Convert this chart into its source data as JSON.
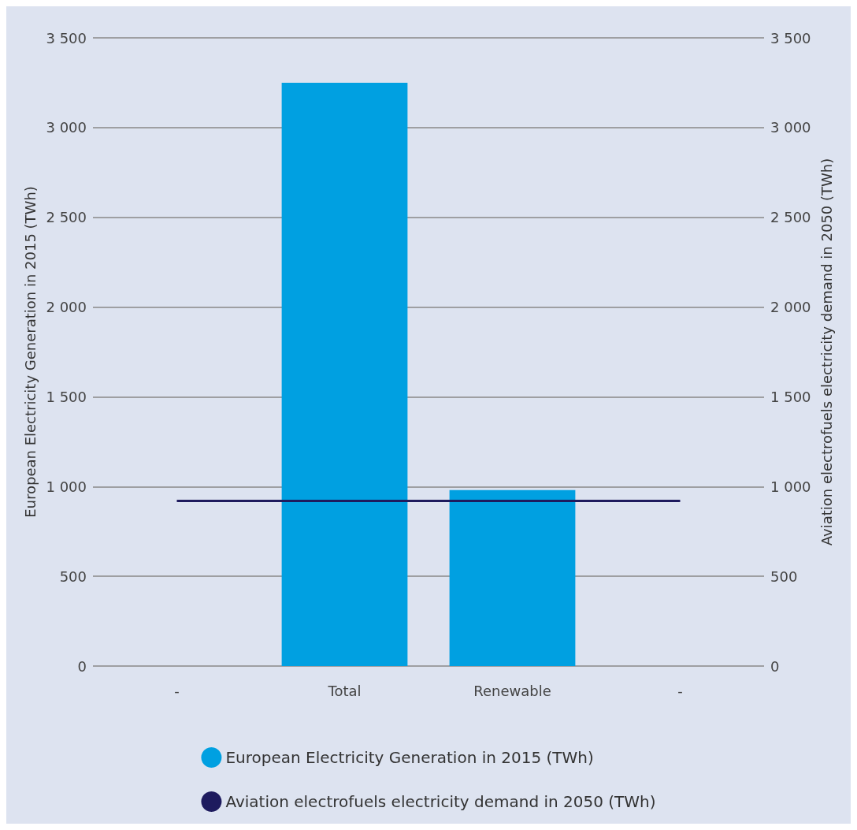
{
  "chart_data": {
    "type": "bar",
    "ylabel": "European Electricity Generation in 2015 (TWh)",
    "y2label": "Aviation electrofuels electricity demand in 2050 (TWh)",
    "categories": [
      "-",
      "Total",
      "Renewable",
      "-"
    ],
    "series": [
      {
        "name": "European Electricity Generation in 2015 (TWh)",
        "color": "#00a0e1",
        "values": [
          null,
          3250,
          980,
          null
        ]
      },
      {
        "name": "Aviation electrofuels electricity demand in 2050 (TWh)",
        "type": "line",
        "axis": "y2",
        "color": "#1e1b5e",
        "values": [
          920,
          920,
          920,
          920
        ]
      }
    ],
    "ylim": [
      0,
      3500
    ],
    "yticks": [
      0,
      500,
      {
        "value": 1000,
        "label": "1 000"
      },
      {
        "value": 1500,
        "label": "1 500"
      },
      {
        "value": 2000,
        "label": "2 000"
      },
      {
        "value": 2500,
        "label": "2 500"
      },
      {
        "value": 3000,
        "label": "3 000"
      },
      {
        "value": 3500,
        "label": "3 500"
      }
    ],
    "y2lim": [
      0,
      3500
    ],
    "y2ticks": [
      0,
      500,
      {
        "value": 1000,
        "label": "1 000"
      },
      {
        "value": 1500,
        "label": "1 500"
      },
      {
        "value": 2000,
        "label": "2 000"
      },
      {
        "value": 2500,
        "label": "2 500"
      },
      {
        "value": 3000,
        "label": "3 000"
      },
      {
        "value": 3500,
        "label": "3 500"
      }
    ],
    "grid": "y",
    "legend": "bottom",
    "marker": "none"
  }
}
